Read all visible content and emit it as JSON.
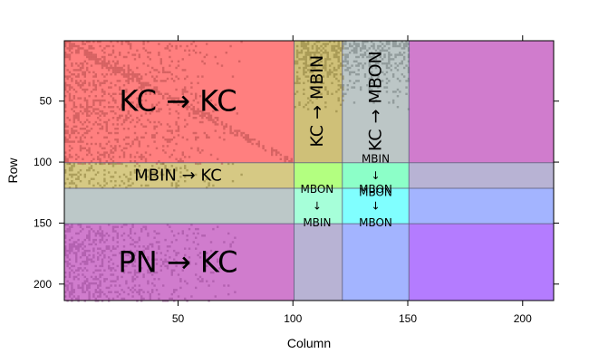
{
  "chart_data": {
    "type": "heatmap",
    "xlabel": "Column",
    "ylabel": "Row",
    "xlim": [
      0.5,
      213.5
    ],
    "ylim": [
      213.5,
      0.5
    ],
    "x_ticks": [
      50,
      100,
      150,
      200
    ],
    "y_ticks": [
      50,
      100,
      150,
      200
    ],
    "boundaries": {
      "columns": [
        100,
        121,
        150
      ],
      "rows": [
        100,
        121,
        150
      ]
    },
    "blocks": [
      {
        "x": [
          0.5,
          100.5
        ],
        "y": [
          0.5,
          100.5
        ],
        "color": "#ff7f7f"
      },
      {
        "x": [
          100.5,
          121.5
        ],
        "y": [
          0.5,
          100.5
        ],
        "color": "#cfc078"
      },
      {
        "x": [
          121.5,
          150.5
        ],
        "y": [
          0.5,
          100.5
        ],
        "color": "#bcc6c6"
      },
      {
        "x": [
          150.5,
          213.5
        ],
        "y": [
          0.5,
          100.5
        ],
        "color": "#d07ccd"
      },
      {
        "x": [
          0.5,
          100.5
        ],
        "y": [
          100.5,
          121.5
        ],
        "color": "#d6c984"
      },
      {
        "x": [
          100.5,
          121.5
        ],
        "y": [
          100.5,
          121.5
        ],
        "color": "#b3ff80"
      },
      {
        "x": [
          121.5,
          150.5
        ],
        "y": [
          100.5,
          121.5
        ],
        "color": "#8cffc8"
      },
      {
        "x": [
          150.5,
          213.5
        ],
        "y": [
          100.5,
          121.5
        ],
        "color": "#b8b3d4"
      },
      {
        "x": [
          0.5,
          100.5
        ],
        "y": [
          121.5,
          150.5
        ],
        "color": "#bcc8c8"
      },
      {
        "x": [
          100.5,
          121.5
        ],
        "y": [
          121.5,
          150.5
        ],
        "color": "#a6ffd9"
      },
      {
        "x": [
          121.5,
          150.5
        ],
        "y": [
          121.5,
          150.5
        ],
        "color": "#80ffff"
      },
      {
        "x": [
          150.5,
          213.5
        ],
        "y": [
          121.5,
          150.5
        ],
        "color": "#a3b4ff"
      },
      {
        "x": [
          0.5,
          100.5
        ],
        "y": [
          150.5,
          213.5
        ],
        "color": "#d07ccd"
      },
      {
        "x": [
          100.5,
          121.5
        ],
        "y": [
          150.5,
          213.5
        ],
        "color": "#b8b3d4"
      },
      {
        "x": [
          121.5,
          150.5
        ],
        "y": [
          150.5,
          213.5
        ],
        "color": "#a3b4ff"
      },
      {
        "x": [
          150.5,
          213.5
        ],
        "y": [
          150.5,
          213.5
        ],
        "color": "#b47cff"
      }
    ],
    "labels": [
      {
        "text": "KC → KC",
        "x": 50,
        "y": 50,
        "size": "xl"
      },
      {
        "text": "KC → MBIN",
        "x": 110.5,
        "y": 50,
        "size": "l",
        "rotate": true
      },
      {
        "text": "KC → MBON",
        "x": 136,
        "y": 50,
        "size": "l",
        "rotate": true
      },
      {
        "text": "MBIN → KC",
        "x": 50,
        "y": 111,
        "size": "m"
      },
      {
        "text": "PN → KC",
        "x": 50,
        "y": 182,
        "size": "xl"
      },
      {
        "lines": [
          "MBON",
          "↓",
          "MBIN"
        ],
        "x": 110.5,
        "y": 136,
        "size": "s"
      },
      {
        "lines": [
          "MBIN",
          "↓",
          "MBON"
        ],
        "x": 136,
        "y": 111,
        "size": "s"
      },
      {
        "lines": [
          "MBON",
          "↓",
          "MBON"
        ],
        "x": 136,
        "y": 136,
        "size": "s"
      }
    ]
  }
}
